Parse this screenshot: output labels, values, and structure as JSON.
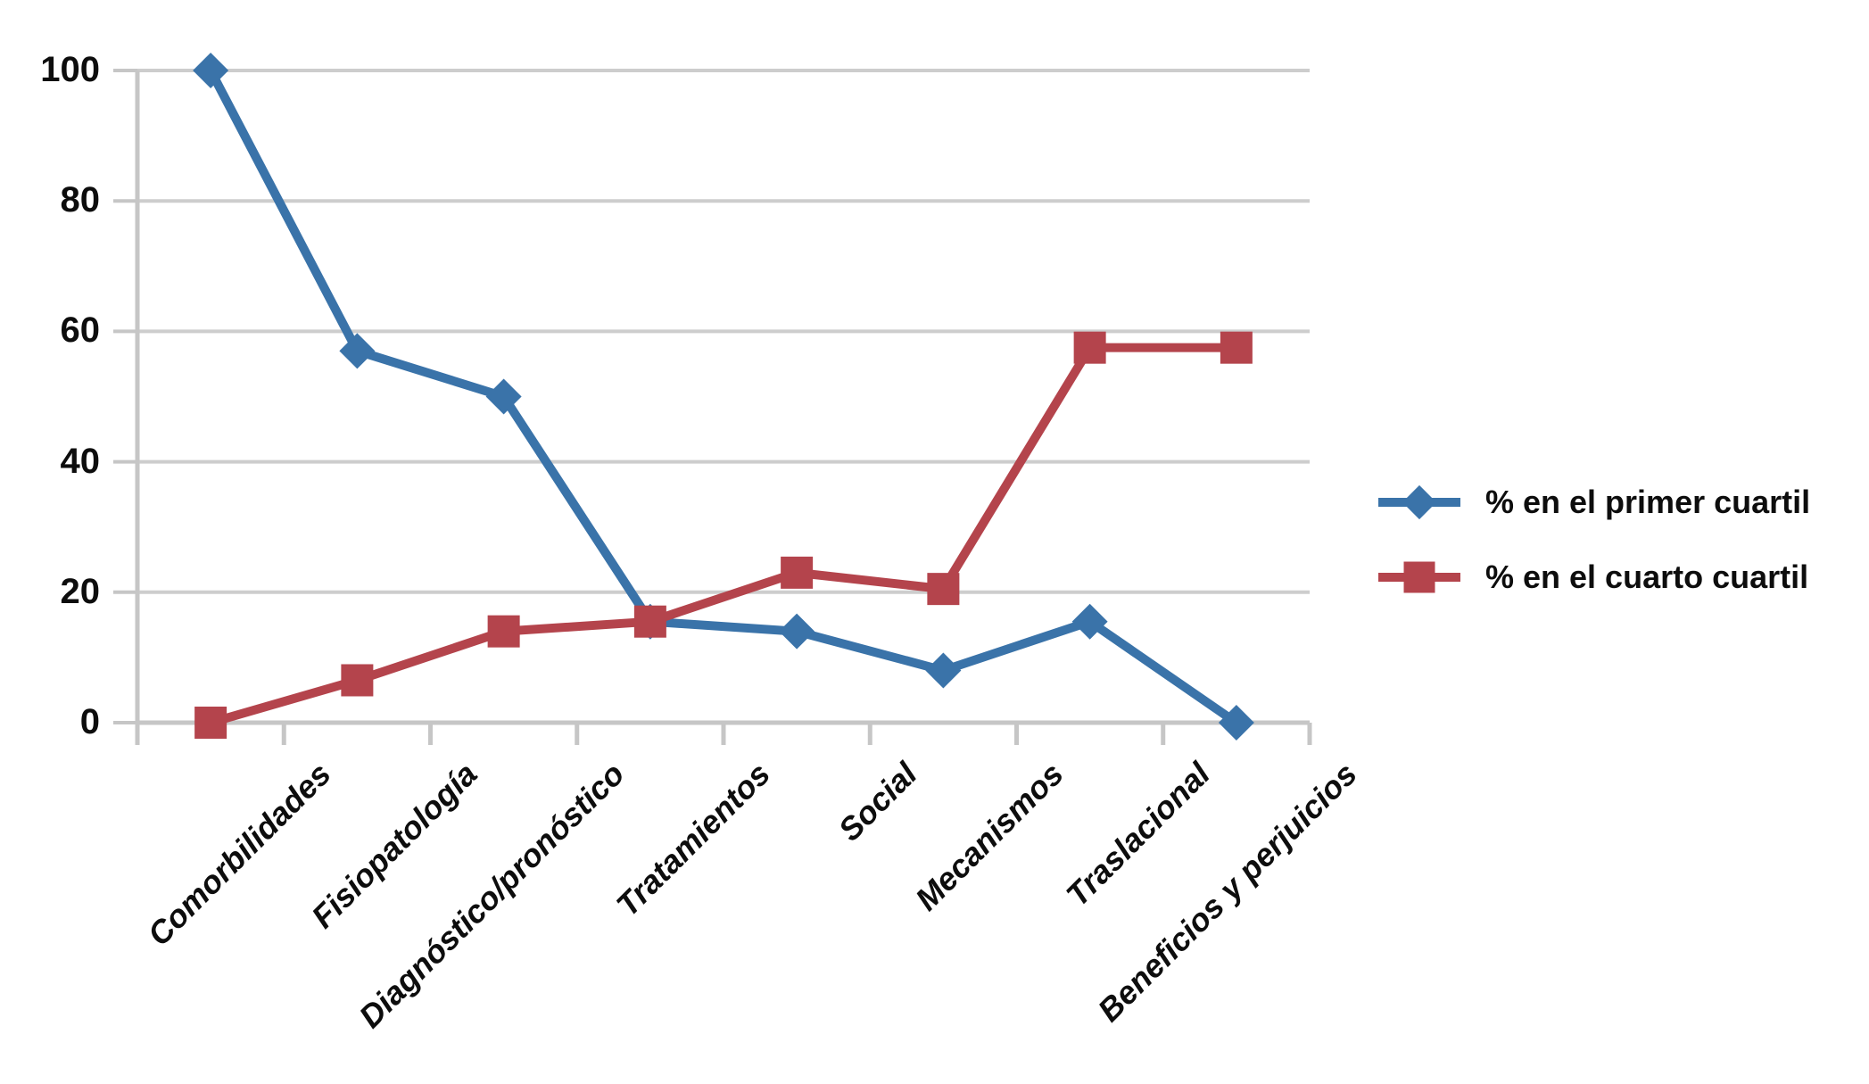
{
  "chart_data": {
    "type": "line",
    "title": "",
    "xlabel": "",
    "ylabel": "",
    "categories": [
      "Comorbilidades",
      "Fisiopatología",
      "Diagnóstico/pronóstico",
      "Tratamientos",
      "Social",
      "Mecanismos",
      "Traslacional",
      "Beneficios y perjuicios"
    ],
    "series": [
      {
        "name": "% en el primer cuartil",
        "marker": "diamond",
        "color": "#3A73A9",
        "values": [
          100,
          57,
          50,
          15.5,
          14,
          8,
          15.5,
          0
        ]
      },
      {
        "name": "% en el cuarto cuartil",
        "marker": "square",
        "color": "#B4444C",
        "values": [
          0,
          6.5,
          14,
          15.5,
          23,
          20.5,
          57.5,
          57.5
        ]
      }
    ],
    "yticks": [
      0,
      20,
      40,
      60,
      80,
      100
    ],
    "ylim": [
      0,
      100
    ],
    "grid": true,
    "legend_position": "right",
    "gridline_color": "#cdcdcd",
    "axis_color": "#c6c6c6",
    "text_color": "#0d0d0d"
  }
}
